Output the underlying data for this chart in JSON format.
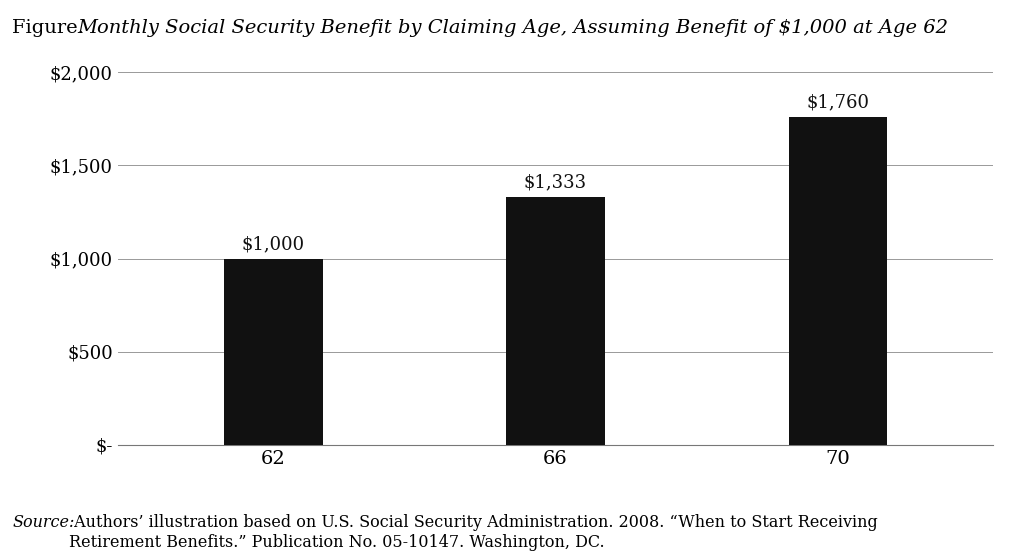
{
  "categories": [
    "62",
    "66",
    "70"
  ],
  "values": [
    1000,
    1333,
    1760
  ],
  "bar_labels": [
    "$1,000",
    "$1,333",
    "$1,760"
  ],
  "bar_color": "#111111",
  "background_color": "#ffffff",
  "ylim": [
    0,
    2000
  ],
  "yticks": [
    0,
    500,
    1000,
    1500,
    2000
  ],
  "ytick_labels": [
    "$-",
    "$500",
    "$1,000",
    "$1,500",
    "$2,000"
  ],
  "title_normal": "Figure. ",
  "title_italic": "Monthly Social Security Benefit by Claiming Age, Assuming Benefit of $1,000 at Age 62",
  "source_italic": "Source:",
  "source_text": " Authors’ illustration based on U.S. Social Security Administration. 2008. “When to Start Receiving\nRetirement Benefits.” Publication No. 05-10147. Washington, DC.",
  "bar_label_fontsize": 13,
  "tick_fontsize": 13,
  "title_fontsize": 14,
  "source_fontsize": 11.5,
  "grid_color": "#999999",
  "bar_width": 0.35
}
